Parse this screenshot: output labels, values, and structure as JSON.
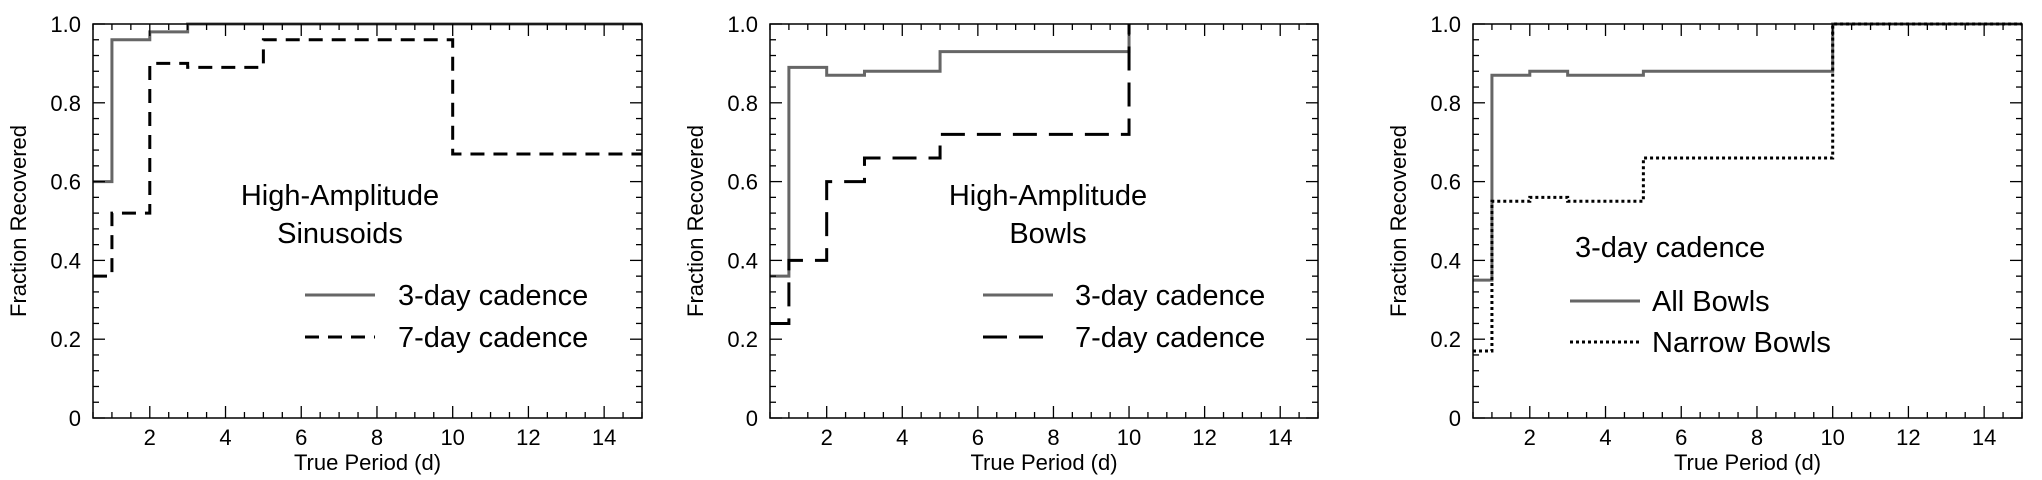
{
  "chart_data": [
    {
      "type": "line",
      "step": true,
      "xlabel": "True Period (d)",
      "ylabel": "Fraction Recovered",
      "xlim": [
        0.5,
        15
      ],
      "ylim": [
        0,
        1
      ],
      "xticks": [
        2,
        4,
        6,
        8,
        10,
        12,
        14
      ],
      "yticks": [
        0,
        0.2,
        0.4,
        0.6,
        0.8,
        1.0
      ],
      "xtick_labels": [
        "2",
        "4",
        "6",
        "8",
        "10",
        "12",
        "14"
      ],
      "ytick_labels": [
        "0",
        "0.2",
        "0.4",
        "0.6",
        "0.8",
        "1.0"
      ],
      "annotation": [
        "High-Amplitude",
        "Sinusoids"
      ],
      "legend_position": "center-right",
      "series": [
        {
          "name": "3-day cadence",
          "color": "#666666",
          "dash": "solid",
          "x": [
            0.5,
            1,
            2,
            3,
            5,
            10,
            15
          ],
          "y": [
            0.6,
            0.96,
            0.98,
            1.0,
            1.0,
            1.0,
            1.0
          ]
        },
        {
          "name": "7-day cadence",
          "color": "#000000",
          "dash": "dashed",
          "x": [
            0.5,
            1,
            2,
            3,
            5,
            10,
            15
          ],
          "y": [
            0.36,
            0.52,
            0.9,
            0.89,
            0.96,
            0.67,
            0.67
          ]
        }
      ]
    },
    {
      "type": "line",
      "step": true,
      "xlabel": "True Period (d)",
      "ylabel": "Fraction Recovered",
      "xlim": [
        0.5,
        15
      ],
      "ylim": [
        0,
        1
      ],
      "xticks": [
        2,
        4,
        6,
        8,
        10,
        12,
        14
      ],
      "yticks": [
        0,
        0.2,
        0.4,
        0.6,
        0.8,
        1.0
      ],
      "xtick_labels": [
        "2",
        "4",
        "6",
        "8",
        "10",
        "12",
        "14"
      ],
      "ytick_labels": [
        "0",
        "0.2",
        "0.4",
        "0.6",
        "0.8",
        "1.0"
      ],
      "annotation": [
        "High-Amplitude",
        "Bowls"
      ],
      "legend_position": "center-right",
      "series": [
        {
          "name": "3-day cadence",
          "color": "#666666",
          "dash": "solid",
          "x": [
            0.5,
            1,
            2,
            3,
            5,
            10,
            10
          ],
          "y": [
            0.36,
            0.89,
            0.87,
            0.88,
            0.93,
            1.0,
            1.0
          ]
        },
        {
          "name": "7-day cadence",
          "color": "#000000",
          "dash": "longdash",
          "x": [
            0.5,
            1,
            2,
            3,
            5,
            10,
            10
          ],
          "y": [
            0.24,
            0.4,
            0.6,
            0.66,
            0.72,
            1.0,
            1.0
          ]
        }
      ]
    },
    {
      "type": "line",
      "step": true,
      "xlabel": "True Period (d)",
      "ylabel": "Fraction Recovered",
      "xlim": [
        0.5,
        15
      ],
      "ylim": [
        0,
        1
      ],
      "xticks": [
        2,
        4,
        6,
        8,
        10,
        12,
        14
      ],
      "yticks": [
        0,
        0.2,
        0.4,
        0.6,
        0.8,
        1.0
      ],
      "xtick_labels": [
        "2",
        "4",
        "6",
        "8",
        "10",
        "12",
        "14"
      ],
      "ytick_labels": [
        "0",
        "0.2",
        "0.4",
        "0.6",
        "0.8",
        "1.0"
      ],
      "annotation": [
        "3-day cadence"
      ],
      "legend_position": "center-left",
      "series": [
        {
          "name": "All Bowls",
          "color": "#666666",
          "dash": "solid",
          "x": [
            0.5,
            1,
            2,
            3,
            5,
            10,
            15
          ],
          "y": [
            0.35,
            0.87,
            0.88,
            0.87,
            0.88,
            1.0,
            1.0
          ]
        },
        {
          "name": "Narrow Bowls",
          "color": "#000000",
          "dash": "dotted",
          "x": [
            0.5,
            1,
            2,
            3,
            5,
            10,
            15
          ],
          "y": [
            0.17,
            0.55,
            0.56,
            0.55,
            0.66,
            1.0,
            1.0
          ]
        }
      ]
    }
  ]
}
